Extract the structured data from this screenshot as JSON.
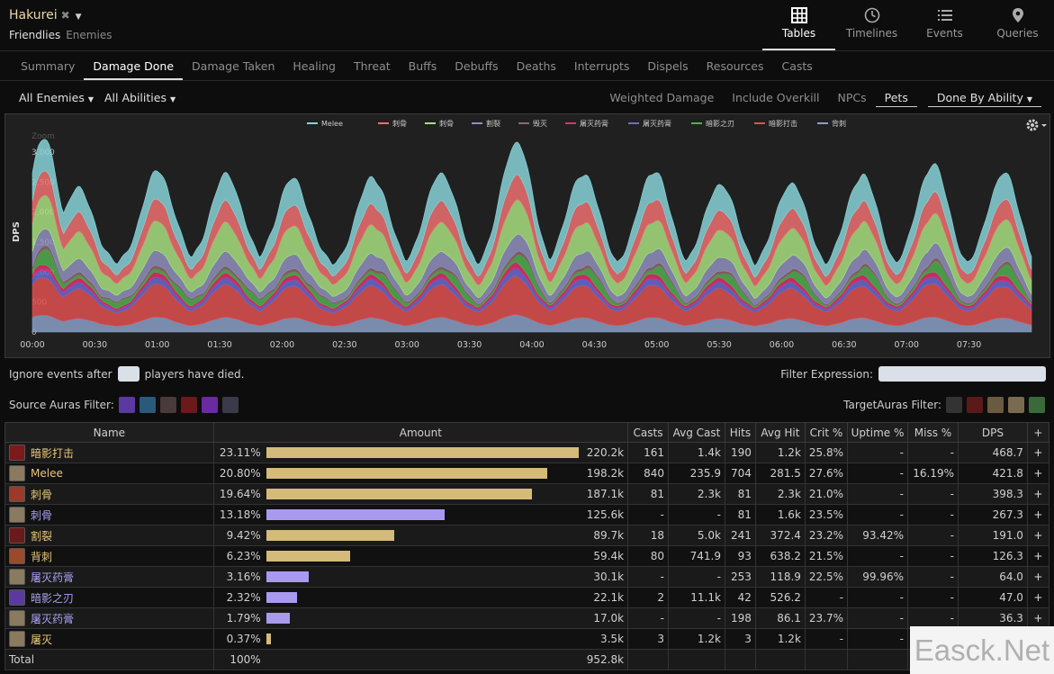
{
  "header": {
    "player_name": "Hakurei",
    "close_glyph": "✖",
    "friendlies": "Friendlies",
    "enemies": "Enemies",
    "nav": [
      {
        "label": "Tables",
        "icon": "grid-icon",
        "active": true
      },
      {
        "label": "Timelines",
        "icon": "clock-icon",
        "active": false
      },
      {
        "label": "Events",
        "icon": "list-icon",
        "active": false
      },
      {
        "label": "Queries",
        "icon": "map-pin-icon",
        "active": false
      }
    ]
  },
  "subtabs": [
    "Summary",
    "Damage Done",
    "Damage Taken",
    "Healing",
    "Threat",
    "Buffs",
    "Debuffs",
    "Deaths",
    "Interrupts",
    "Dispels",
    "Resources",
    "Casts"
  ],
  "active_subtab": "Damage Done",
  "filters": {
    "enemies": "All Enemies",
    "abilities": "All Abilities",
    "options": [
      "Weighted Damage",
      "Include Overkill",
      "NPCs",
      "Pets"
    ],
    "active_option": "Pets",
    "done_by": "Done By Ability"
  },
  "chart_data": {
    "type": "area",
    "stacked": true,
    "ylabel": "DPS",
    "yticks": [
      "0",
      "500",
      "1,000",
      "1,500",
      "2,000",
      "2,500",
      "3,000"
    ],
    "ylim": [
      0,
      3300
    ],
    "xticks": [
      "00:00",
      "00:30",
      "01:00",
      "01:30",
      "02:00",
      "02:30",
      "03:00",
      "03:30",
      "04:00",
      "04:30",
      "05:00",
      "05:30",
      "06:00",
      "06:30",
      "07:00",
      "07:30"
    ],
    "xlim_seconds": [
      0,
      480
    ],
    "zoom_label": "Zoom",
    "legend_position": "top-center",
    "legend": [
      {
        "name": "Melee",
        "color": "#88d3d8"
      },
      {
        "name": "刺骨",
        "color": "#f07070"
      },
      {
        "name": "刺骨",
        "color": "#a8e080"
      },
      {
        "name": "割裂",
        "color": "#9090c0"
      },
      {
        "name": "毁灭",
        "color": "#8c6a6a"
      },
      {
        "name": "屠灭药膏",
        "color": "#e03070"
      },
      {
        "name": "屠灭药膏",
        "color": "#6a6ad0"
      },
      {
        "name": "暗影之刃",
        "color": "#50b050"
      },
      {
        "name": "暗影打击",
        "color": "#e05050"
      },
      {
        "name": "背刺",
        "color": "#8aa0c8"
      }
    ],
    "total_peaks": [
      {
        "t": 5,
        "v": 3150
      },
      {
        "t": 22,
        "v": 2480
      },
      {
        "t": 60,
        "v": 2780
      },
      {
        "t": 93,
        "v": 2720
      },
      {
        "t": 125,
        "v": 2650
      },
      {
        "t": 163,
        "v": 2650
      },
      {
        "t": 196,
        "v": 2720
      },
      {
        "t": 232,
        "v": 3200
      },
      {
        "t": 264,
        "v": 2690
      },
      {
        "t": 298,
        "v": 2720
      },
      {
        "t": 330,
        "v": 2510
      },
      {
        "t": 364,
        "v": 2510
      },
      {
        "t": 398,
        "v": 2630
      },
      {
        "t": 432,
        "v": 2790
      },
      {
        "t": 466,
        "v": 2630
      }
    ]
  },
  "ignore": {
    "before": "Ignore events after",
    "after": "players have died."
  },
  "filter_expression_label": "Filter Expression:",
  "source_auras_label": "Source Auras Filter:",
  "target_auras_label": "TargetAuras Filter:",
  "table": {
    "headers": [
      "Name",
      "Amount",
      "Casts",
      "Avg Cast",
      "Hits",
      "Avg Hit",
      "Crit %",
      "Uptime %",
      "Miss %",
      "DPS",
      "+"
    ],
    "rows": [
      {
        "name": "暗影打击",
        "color_class": "gold",
        "icon_color": "#7a1a1a",
        "pct": "23.11%",
        "frac": 1.0,
        "bar_color": "#d4bb7a",
        "amount": "220.2k",
        "casts": "161",
        "avg_cast": "1.4k",
        "hits": "190",
        "avg_hit": "1.2k",
        "crit": "25.8%",
        "uptime": "-",
        "miss": "-",
        "dps": "468.7",
        "plus": "+"
      },
      {
        "name": "Melee",
        "color_class": "gold",
        "icon_color": "#8a7a60",
        "pct": "20.80%",
        "frac": 0.9,
        "bar_color": "#d4bb7a",
        "amount": "198.2k",
        "casts": "840",
        "avg_cast": "235.9",
        "hits": "704",
        "avg_hit": "281.5",
        "crit": "27.6%",
        "uptime": "-",
        "miss": "16.19%",
        "dps": "421.8",
        "plus": "+"
      },
      {
        "name": "刺骨",
        "color_class": "gold",
        "icon_color": "#9a3a2a",
        "pct": "19.64%",
        "frac": 0.85,
        "bar_color": "#d4bb7a",
        "amount": "187.1k",
        "casts": "81",
        "avg_cast": "2.3k",
        "hits": "81",
        "avg_hit": "2.3k",
        "crit": "21.0%",
        "uptime": "-",
        "miss": "-",
        "dps": "398.3",
        "plus": "+"
      },
      {
        "name": "刺骨",
        "color_class": "violet",
        "icon_color": "#8a7a60",
        "pct": "13.18%",
        "frac": 0.57,
        "bar_color": "#a99af0",
        "amount": "125.6k",
        "casts": "-",
        "avg_cast": "-",
        "hits": "81",
        "avg_hit": "1.6k",
        "crit": "23.5%",
        "uptime": "-",
        "miss": "-",
        "dps": "267.3",
        "plus": "+"
      },
      {
        "name": "割裂",
        "color_class": "gold",
        "icon_color": "#6a1a1a",
        "pct": "9.42%",
        "frac": 0.41,
        "bar_color": "#d4bb7a",
        "amount": "89.7k",
        "casts": "18",
        "avg_cast": "5.0k",
        "hits": "241",
        "avg_hit": "372.4",
        "crit": "23.2%",
        "uptime": "93.42%",
        "miss": "-",
        "dps": "191.0",
        "plus": "+"
      },
      {
        "name": "背刺",
        "color_class": "gold",
        "icon_color": "#9a4a2a",
        "pct": "6.23%",
        "frac": 0.27,
        "bar_color": "#d4bb7a",
        "amount": "59.4k",
        "casts": "80",
        "avg_cast": "741.9",
        "hits": "93",
        "avg_hit": "638.2",
        "crit": "21.5%",
        "uptime": "-",
        "miss": "-",
        "dps": "126.3",
        "plus": "+"
      },
      {
        "name": "屠灭药膏",
        "color_class": "violet",
        "icon_color": "#8a7a60",
        "pct": "3.16%",
        "frac": 0.137,
        "bar_color": "#a99af0",
        "amount": "30.1k",
        "casts": "-",
        "avg_cast": "-",
        "hits": "253",
        "avg_hit": "118.9",
        "crit": "22.5%",
        "uptime": "99.96%",
        "miss": "-",
        "dps": "64.0",
        "plus": "+"
      },
      {
        "name": "暗影之刃",
        "color_class": "violet",
        "icon_color": "#5a3aa0",
        "pct": "2.32%",
        "frac": 0.1,
        "bar_color": "#a99af0",
        "amount": "22.1k",
        "casts": "2",
        "avg_cast": "11.1k",
        "hits": "42",
        "avg_hit": "526.2",
        "crit": "-",
        "uptime": "-",
        "miss": "-",
        "dps": "47.0",
        "plus": "+"
      },
      {
        "name": "屠灭药膏",
        "color_class": "violet",
        "icon_color": "#8a7a60",
        "pct": "1.79%",
        "frac": 0.077,
        "bar_color": "#a99af0",
        "amount": "17.0k",
        "casts": "-",
        "avg_cast": "-",
        "hits": "198",
        "avg_hit": "86.1",
        "crit": "23.7%",
        "uptime": "-",
        "miss": "-",
        "dps": "36.3",
        "plus": "+"
      },
      {
        "name": "屠灭",
        "color_class": "gold",
        "icon_color": "#8a7a60",
        "pct": "0.37%",
        "frac": 0.016,
        "bar_color": "#d4bb7a",
        "amount": "3.5k",
        "casts": "3",
        "avg_cast": "1.2k",
        "hits": "3",
        "avg_hit": "1.2k",
        "crit": "-",
        "uptime": "-",
        "miss": "-",
        "dps": "",
        "plus": ""
      }
    ],
    "total": {
      "label": "Total",
      "pct": "100%",
      "amount": "952.8k"
    }
  },
  "watermark": "Easck.Net"
}
